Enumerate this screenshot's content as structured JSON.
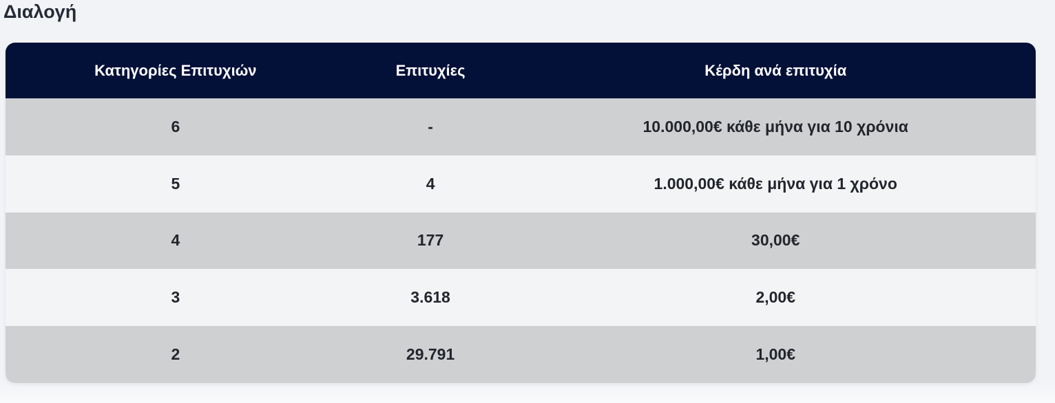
{
  "page": {
    "title": "Διαλογή"
  },
  "table": {
    "headers": [
      "Κατηγορίες Επιτυχιών",
      "Επιτυχίες",
      "Κέρδη ανά επιτυχία"
    ],
    "rows": [
      {
        "category": "6",
        "winners": "-",
        "prize": "10.000,00€ κάθε μήνα για 10 χρόνια"
      },
      {
        "category": "5",
        "winners": "4",
        "prize": "1.000,00€ κάθε μήνα για 1 χρόνο"
      },
      {
        "category": "4",
        "winners": "177",
        "prize": "30,00€"
      },
      {
        "category": "3",
        "winners": "3.618",
        "prize": "2,00€"
      },
      {
        "category": "2",
        "winners": "29.791",
        "prize": "1,00€"
      }
    ]
  },
  "colors": {
    "page_bg": "#f1f3f6",
    "page_bg_fade": "#f9fafc",
    "title_text": "#252a36",
    "header_bg": "#031038",
    "header_text": "#ffffff",
    "row_odd_bg": "#cfd0d2",
    "row_even_bg": "#f3f4f6",
    "cell_text": "#22252c"
  }
}
